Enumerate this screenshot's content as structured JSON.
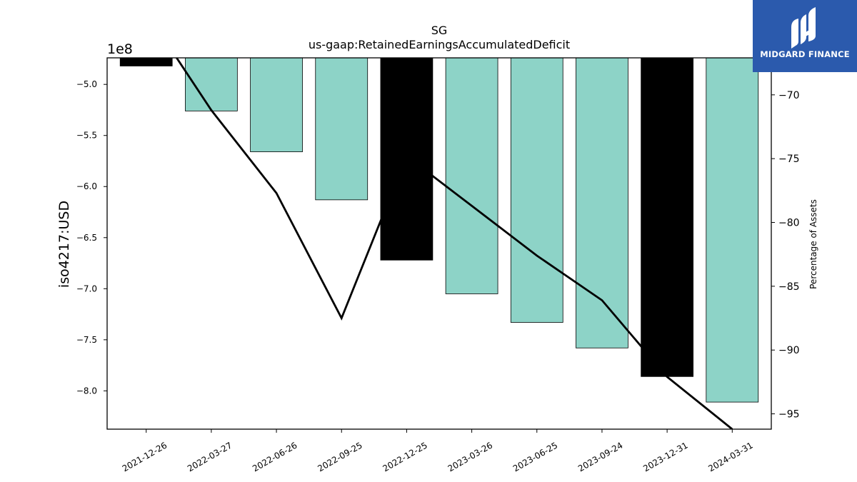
{
  "chart_data": {
    "type": "bar",
    "title": "SG",
    "subtitle": "us-gaap:RetainedEarningsAccumulatedDeficit",
    "ylabel": "iso4217:USD",
    "y_offset_label": "1e8",
    "y2label": "Percentage of Assets",
    "categories": [
      "2021-12-26",
      "2022-03-27",
      "2022-06-26",
      "2022-09-25",
      "2022-12-25",
      "2023-03-26",
      "2023-06-25",
      "2023-09-24",
      "2023-12-31",
      "2024-03-31"
    ],
    "series": [
      {
        "type": "bar",
        "values": [
          -4.82,
          -5.26,
          -5.66,
          -6.13,
          -6.72,
          -7.05,
          -7.33,
          -7.58,
          -7.86,
          -8.11
        ],
        "colors": [
          "#000000",
          "#8dd3c7",
          "#8dd3c7",
          "#8dd3c7",
          "#000000",
          "#8dd3c7",
          "#8dd3c7",
          "#8dd3c7",
          "#000000",
          "#8dd3c7"
        ]
      },
      {
        "type": "line",
        "axis": "right",
        "values": [
          -63.5,
          -71.2,
          -77.7,
          -87.5,
          -74.8,
          -78.7,
          -82.6,
          -86.1,
          -92.1,
          -96.2
        ]
      }
    ],
    "yticks": [
      -5.0,
      -5.5,
      -6.0,
      -6.5,
      -7.0,
      -7.5,
      -8.0
    ],
    "ytick_labels": [
      "−5.0",
      "−5.5",
      "−6.0",
      "−6.5",
      "−7.0",
      "−7.5",
      "−8.0"
    ],
    "ylim": [
      -8.375,
      -4.74
    ],
    "y2ticks": [
      -70,
      -75,
      -80,
      -85,
      -90,
      -95
    ],
    "y2tick_labels": [
      "−70",
      "−75",
      "−80",
      "−85",
      "−90",
      "−95"
    ],
    "y2lim": [
      -96.2,
      -67.1
    ],
    "grid": false,
    "colors": {
      "bar": "#8dd3c7",
      "highlight_bar": "#000000",
      "line": "#000000"
    }
  },
  "logo": {
    "text": "MIDGARD FINANCE",
    "background": "#2b5aad"
  }
}
